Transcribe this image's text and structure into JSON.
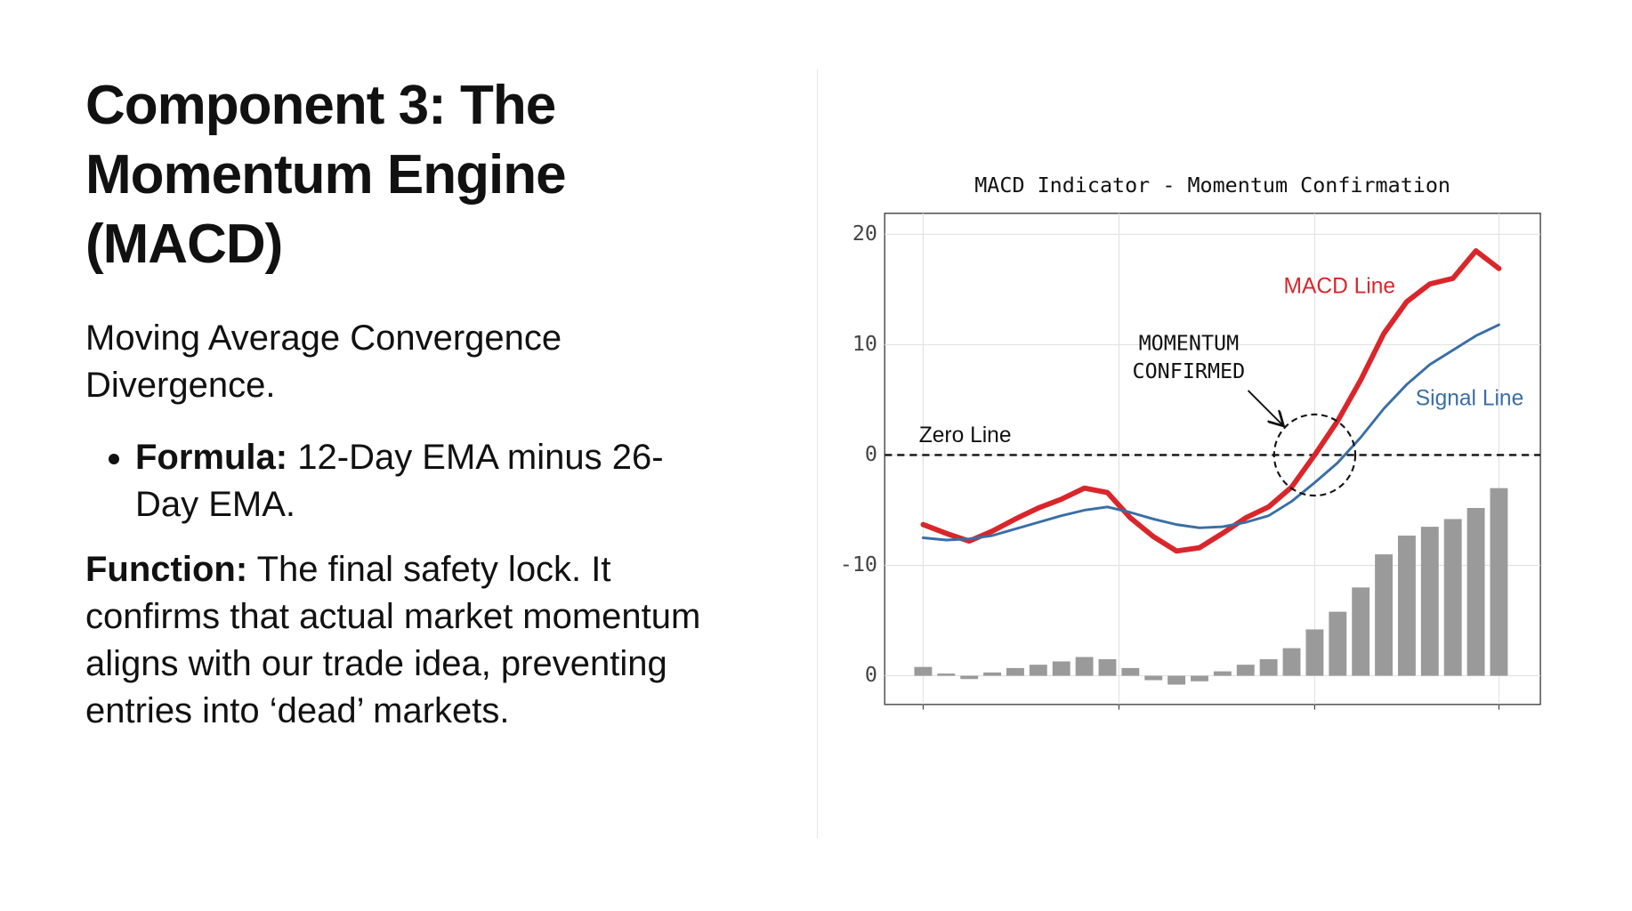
{
  "slide": {
    "title": "Component 3: The Momentum Engine (MACD)",
    "intro": "Moving Average Convergence Divergence.",
    "formula_label": "Formula:",
    "formula_text": "12-Day EMA minus 26-Day EMA.",
    "function_label": "Function:",
    "function_text": "The final safety lock. It confirms that actual market momentum aligns with our trade idea, preventing entries into ‘dead’ markets."
  },
  "chart_data": {
    "type": "line",
    "title": "MACD Indicator - Momentum Confirmation",
    "x": [
      0,
      1,
      2,
      3,
      4,
      5,
      6,
      7,
      8,
      9,
      10,
      11,
      12,
      13,
      14,
      15,
      16,
      17,
      18,
      19,
      20,
      21,
      22,
      23,
      24,
      25
    ],
    "series": [
      {
        "name": "MACD Line",
        "color": "#d9262b",
        "values": [
          -6.3,
          -7.1,
          -7.8,
          -6.9,
          -5.8,
          -4.8,
          -4.0,
          -3.0,
          -3.4,
          -5.7,
          -7.4,
          -8.7,
          -8.4,
          -7.1,
          -5.7,
          -4.7,
          -2.9,
          0,
          3.1,
          6.8,
          11.0,
          13.9,
          15.5,
          16.0,
          18.5,
          16.9
        ]
      },
      {
        "name": "Signal Line",
        "color": "#3a6ea5",
        "values": [
          -7.5,
          -7.7,
          -7.6,
          -7.3,
          -6.7,
          -6.1,
          -5.5,
          -5.0,
          -4.7,
          -5.2,
          -5.8,
          -6.3,
          -6.6,
          -6.5,
          -6.1,
          -5.5,
          -4.2,
          -2.5,
          -0.7,
          1.6,
          4.2,
          6.4,
          8.2,
          9.5,
          10.8,
          11.8
        ]
      }
    ],
    "histogram": {
      "color": "#9a9a9a",
      "axis": "y2",
      "values": [
        0.8,
        0.2,
        -0.3,
        0.3,
        0.7,
        1.0,
        1.3,
        1.7,
        1.5,
        0.7,
        -0.4,
        -0.8,
        -0.5,
        0.4,
        1.0,
        1.5,
        2.5,
        4.2,
        5.8,
        8.0,
        11.0,
        12.7,
        13.5,
        14.2,
        15.2,
        17.0
      ]
    },
    "xlim": [
      -1.67,
      26.8
    ],
    "xticks": [
      0,
      8.5,
      17,
      25
    ],
    "ylim": [
      -22.6,
      21.9
    ],
    "yticks": [
      20,
      10,
      0,
      -10
    ],
    "y2lim": [
      -2.6,
      41.9
    ],
    "y2ticks": [
      0
    ],
    "grid": true,
    "zero_line_label": "Zero Line",
    "annotation": {
      "lines": [
        "MOMENTUM",
        "CONFIRMED"
      ],
      "x": 17,
      "y": 0
    }
  }
}
